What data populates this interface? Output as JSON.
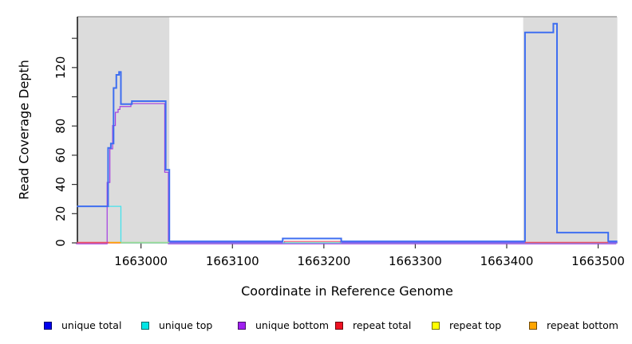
{
  "figure": {
    "background": "#ffffff",
    "frame_color": "#a0a0a0",
    "axis_color": "#000000",
    "shade_color": "#dcdcdc"
  },
  "chart_data": {
    "type": "line",
    "subtype": "step-coverage",
    "title": "",
    "xlabel": "Coordinate in Reference Genome",
    "ylabel": "Read Coverage Depth",
    "xlim": [
      1662930,
      1663521
    ],
    "ylim": [
      0,
      155
    ],
    "grid": false,
    "x_ticks": [
      1663000,
      1663100,
      1663200,
      1663300,
      1663400,
      1663500
    ],
    "x_tick_labels": [
      "1663000",
      "1663100",
      "1663200",
      "1663300",
      "1663400",
      "1663500"
    ],
    "y_ticks": [
      0,
      20,
      40,
      60,
      80,
      100,
      120,
      140
    ],
    "y_tick_labels": [
      "0",
      "20",
      "40",
      "60",
      "80",
      "",
      "120",
      ""
    ],
    "shaded_regions": [
      {
        "from": 1662930,
        "to": 1663031
      },
      {
        "from": 1663418,
        "to": 1663521
      }
    ],
    "legend": {
      "position": "bottom",
      "items": [
        {
          "label": "unique total",
          "color": "#0000ee"
        },
        {
          "label": "unique top",
          "color": "#00e6e6"
        },
        {
          "label": "unique bottom",
          "color": "#a020f0"
        },
        {
          "label": "repeat total",
          "color": "#ee1122"
        },
        {
          "label": "repeat top",
          "color": "#ffff00"
        },
        {
          "label": "repeat bottom",
          "color": "#ffa500"
        }
      ]
    },
    "series": [
      {
        "name": "repeat top",
        "color": "#f0e030",
        "line_width": 1.2,
        "steps": [
          [
            1662930,
            0
          ],
          [
            1663521,
            0
          ]
        ]
      },
      {
        "name": "repeat bottom",
        "color": "#ffa500",
        "line_width": 1.2,
        "steps": [
          [
            1662930,
            0
          ],
          [
            1663521,
            0
          ]
        ]
      },
      {
        "name": "repeat total",
        "color": "#e94f68",
        "line_width": 1.2,
        "steps": [
          [
            1662930,
            0
          ],
          [
            1663157,
            1
          ],
          [
            1663218,
            0
          ],
          [
            1663521,
            0
          ]
        ]
      },
      {
        "name": "unique top",
        "color": "#45e2ec",
        "line_width": 1.3,
        "steps": [
          [
            1662930,
            25
          ],
          [
            1662978,
            0
          ],
          [
            1663521,
            0
          ]
        ]
      },
      {
        "name": "unique bottom",
        "color": "#a43de0",
        "line_width": 1.2,
        "steps": [
          [
            1662930,
            0
          ],
          [
            1662964,
            42
          ],
          [
            1662967,
            65
          ],
          [
            1662970,
            81
          ],
          [
            1662973,
            90
          ],
          [
            1662976,
            92
          ],
          [
            1662978,
            94
          ],
          [
            1662990,
            96
          ],
          [
            1663027,
            49
          ],
          [
            1663031,
            0
          ],
          [
            1663521,
            0
          ]
        ]
      },
      {
        "name": "unique total",
        "color": "#3e6ef0",
        "line_width": 2,
        "steps": [
          [
            1662930,
            25
          ],
          [
            1662964,
            65
          ],
          [
            1662967,
            68
          ],
          [
            1662970,
            106
          ],
          [
            1662973,
            115
          ],
          [
            1662976,
            117
          ],
          [
            1662978,
            95
          ],
          [
            1662990,
            97
          ],
          [
            1663027,
            50
          ],
          [
            1663031,
            1
          ],
          [
            1663155,
            3
          ],
          [
            1663219,
            1
          ],
          [
            1663420,
            144
          ],
          [
            1663451,
            150
          ],
          [
            1663455,
            7
          ],
          [
            1663511,
            1
          ],
          [
            1663521,
            1
          ]
        ]
      }
    ],
    "baseline_overlay": [
      {
        "from": 1662930,
        "to": 1662965,
        "color": "#e94f68"
      },
      {
        "from": 1662965,
        "to": 1662978,
        "color": "#ffa500"
      },
      {
        "from": 1662978,
        "to": 1663031,
        "color": "#98dc98"
      },
      {
        "from": 1663031,
        "to": 1663155,
        "color": "#7a5cf5"
      },
      {
        "from": 1663219,
        "to": 1663420,
        "color": "#7a5cf5"
      },
      {
        "from": 1663420,
        "to": 1663511,
        "color": "#e94f68"
      },
      {
        "from": 1663511,
        "to": 1663521,
        "color": "#7a5cf5"
      }
    ]
  }
}
